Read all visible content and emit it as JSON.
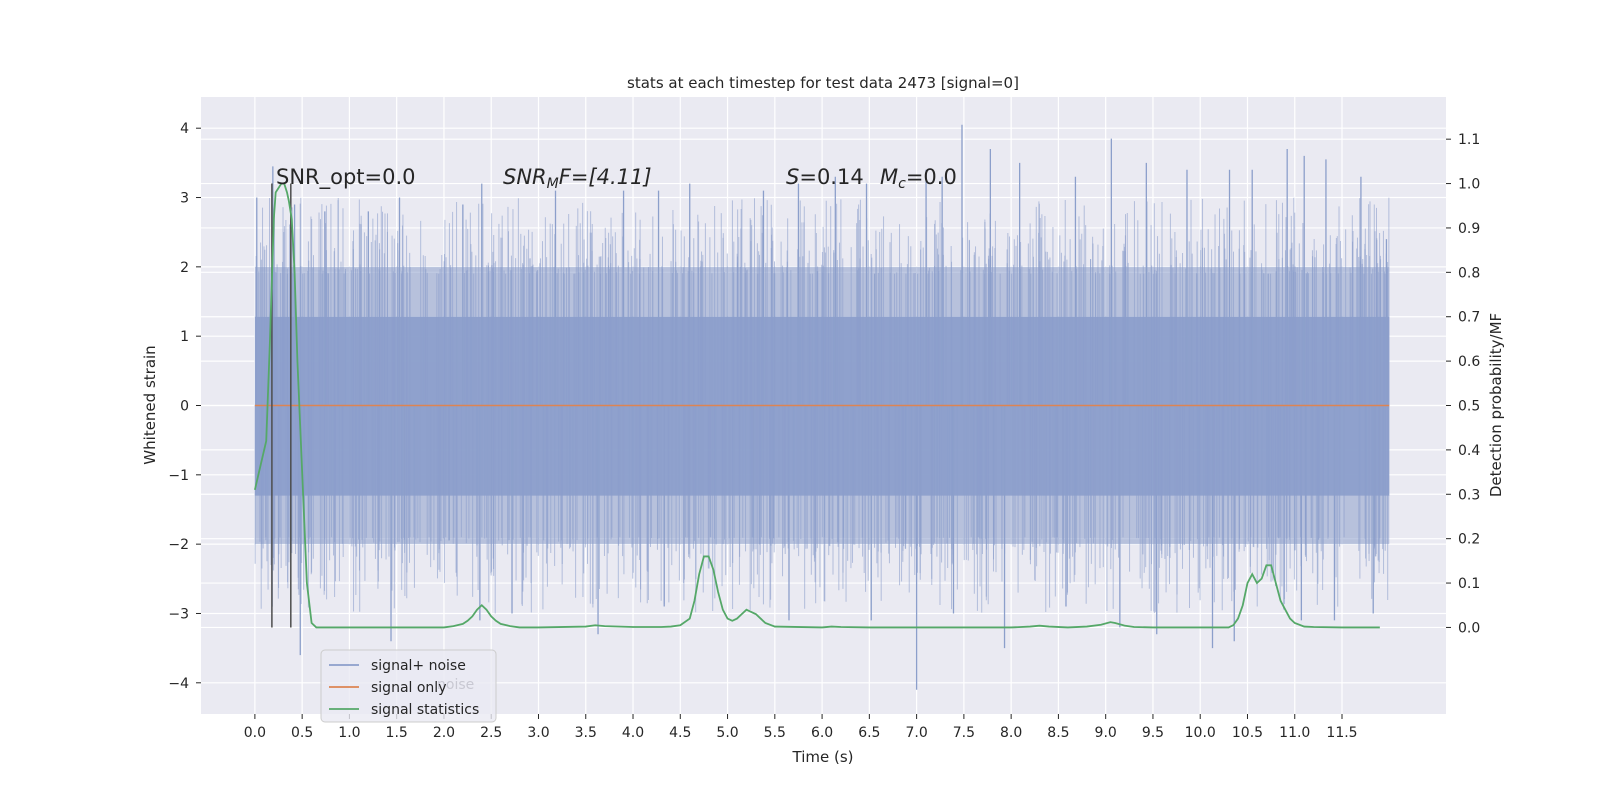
{
  "chart_data": {
    "type": "line",
    "title": "stats at each timestep for test data 2473 [signal=0]",
    "xlabel": "Time (s)",
    "ylabel": "Whitened strain",
    "y2label": "Detection probability/MF",
    "xlim": [
      -0.57,
      12.6
    ],
    "ylim": [
      -4.45,
      4.45
    ],
    "y2lim": [
      -0.195,
      1.195
    ],
    "x_ticks": [
      0.0,
      0.5,
      1.0,
      1.5,
      2.0,
      2.5,
      3.0,
      3.5,
      4.0,
      4.5,
      5.0,
      5.5,
      6.0,
      6.5,
      7.0,
      7.5,
      8.0,
      8.5,
      9.0,
      9.5,
      10.0,
      10.5,
      11.0,
      11.5
    ],
    "x_tick_labels": [
      "0.0",
      "0.5",
      "1.0",
      "1.5",
      "2.0",
      "2.5",
      "3.0",
      "3.5",
      "4.0",
      "4.5",
      "5.0",
      "5.5",
      "6.0",
      "6.5",
      "7.0",
      "7.5",
      "8.0",
      "8.5",
      "9.0",
      "9.5",
      "10.0",
      "10.5",
      "11.0",
      "11.5"
    ],
    "y_ticks": [
      -4,
      -3,
      -2,
      -1,
      0,
      1,
      2,
      3,
      4
    ],
    "y_tick_labels": [
      "−4",
      "−3",
      "−2",
      "−1",
      "0",
      "1",
      "2",
      "3",
      "4"
    ],
    "y2_ticks": [
      0.0,
      0.1,
      0.2,
      0.3,
      0.4,
      0.5,
      0.6,
      0.7,
      0.8,
      0.9,
      1.0,
      1.1
    ],
    "y2_tick_labels": [
      "0.0",
      "0.1",
      "0.2",
      "0.3",
      "0.4",
      "0.5",
      "0.6",
      "0.7",
      "0.8",
      "0.9",
      "1.0",
      "1.1"
    ],
    "grid": true,
    "legend_position": "lower-left",
    "noise_band": {
      "x_start": 0.0,
      "x_end": 12.0,
      "core_low": -1.3,
      "core_high": 1.28,
      "typical_low": -2.0,
      "typical_high": 2.0
    },
    "series": [
      {
        "name": "signal+ noise",
        "color": "#8c9fcb",
        "spikes_up": [
          [
            0.02,
            3.0
          ],
          [
            0.19,
            3.45
          ],
          [
            0.42,
            2.9
          ],
          [
            0.74,
            2.8
          ],
          [
            1.2,
            2.8
          ],
          [
            1.53,
            3.0
          ],
          [
            2.2,
            2.9
          ],
          [
            2.4,
            3.2
          ],
          [
            3.18,
            3.1
          ],
          [
            3.9,
            3.1
          ],
          [
            4.27,
            3.1
          ],
          [
            4.6,
            3.2
          ],
          [
            5.38,
            3.1
          ],
          [
            5.75,
            3.2
          ],
          [
            6.14,
            3.3
          ],
          [
            6.47,
            3.2
          ],
          [
            7.1,
            3.4
          ],
          [
            7.27,
            3.3
          ],
          [
            7.48,
            4.05
          ],
          [
            7.78,
            3.7
          ],
          [
            8.09,
            3.5
          ],
          [
            8.68,
            3.3
          ],
          [
            9.06,
            3.85
          ],
          [
            9.43,
            3.5
          ],
          [
            9.86,
            3.4
          ],
          [
            10.31,
            3.4
          ],
          [
            10.55,
            3.4
          ],
          [
            10.92,
            3.7
          ],
          [
            11.1,
            3.6
          ],
          [
            11.33,
            3.55
          ],
          [
            11.7,
            3.3
          ],
          [
            11.97,
            2.4
          ]
        ],
        "spikes_down": [
          [
            0.48,
            -3.6
          ],
          [
            1.44,
            -3.4
          ],
          [
            2.38,
            -3.1
          ],
          [
            2.72,
            -3.0
          ],
          [
            3.63,
            -3.3
          ],
          [
            4.33,
            -2.9
          ],
          [
            5.65,
            -3.1
          ],
          [
            6.52,
            -3.1
          ],
          [
            7.0,
            -4.1
          ],
          [
            7.39,
            -3.0
          ],
          [
            7.93,
            -3.5
          ],
          [
            8.58,
            -2.9
          ],
          [
            9.15,
            -3.2
          ],
          [
            9.54,
            -3.3
          ],
          [
            10.13,
            -3.5
          ],
          [
            10.36,
            -3.4
          ],
          [
            11.07,
            -3.1
          ],
          [
            11.42,
            -3.1
          ],
          [
            11.83,
            -3.0
          ]
        ]
      },
      {
        "name": "signal only",
        "color": "#dd8452",
        "x": [
          0.0,
          12.0
        ],
        "y": [
          0.0,
          0.0
        ]
      },
      {
        "name": "signal statistics",
        "color": "#55a868",
        "x": [
          0.0,
          0.12,
          0.16,
          0.2,
          0.22,
          0.25,
          0.28,
          0.31,
          0.34,
          0.36,
          0.39,
          0.42,
          0.45,
          0.5,
          0.55,
          0.6,
          0.65,
          0.8,
          1.0,
          1.5,
          2.0,
          2.1,
          2.2,
          2.25,
          2.3,
          2.35,
          2.4,
          2.45,
          2.5,
          2.55,
          2.6,
          2.7,
          2.8,
          3.0,
          3.5,
          3.6,
          3.7,
          4.0,
          4.3,
          4.4,
          4.5,
          4.6,
          4.65,
          4.7,
          4.75,
          4.8,
          4.85,
          4.9,
          4.95,
          5.0,
          5.05,
          5.1,
          5.15,
          5.2,
          5.25,
          5.3,
          5.35,
          5.4,
          5.5,
          6.0,
          6.1,
          6.2,
          6.5,
          7.0,
          7.5,
          8.0,
          8.2,
          8.3,
          8.4,
          8.6,
          8.8,
          8.95,
          9.05,
          9.1,
          9.2,
          9.3,
          9.5,
          10.0,
          10.3,
          10.35,
          10.4,
          10.45,
          10.5,
          10.55,
          10.6,
          10.65,
          10.7,
          10.75,
          10.8,
          10.85,
          10.9,
          10.95,
          11.0,
          11.1,
          11.2,
          11.5,
          11.9
        ],
        "y": [
          0.31,
          0.42,
          0.65,
          0.92,
          0.98,
          0.99,
          1.0,
          1.0,
          0.98,
          0.96,
          0.92,
          0.8,
          0.6,
          0.35,
          0.1,
          0.01,
          0.0,
          0.0,
          0.0,
          0.0,
          0.0,
          0.003,
          0.008,
          0.015,
          0.025,
          0.04,
          0.05,
          0.04,
          0.025,
          0.015,
          0.008,
          0.003,
          0.0,
          0.0,
          0.002,
          0.005,
          0.003,
          0.001,
          0.001,
          0.002,
          0.005,
          0.02,
          0.06,
          0.12,
          0.16,
          0.16,
          0.13,
          0.08,
          0.04,
          0.02,
          0.015,
          0.02,
          0.03,
          0.04,
          0.035,
          0.03,
          0.02,
          0.01,
          0.002,
          0.0,
          0.002,
          0.001,
          0.0,
          0.0,
          0.0,
          0.0,
          0.002,
          0.004,
          0.002,
          0.0,
          0.002,
          0.006,
          0.012,
          0.01,
          0.004,
          0.001,
          0.0,
          0.0,
          0.0,
          0.005,
          0.02,
          0.05,
          0.1,
          0.12,
          0.1,
          0.11,
          0.14,
          0.14,
          0.1,
          0.06,
          0.04,
          0.02,
          0.01,
          0.002,
          0.001,
          0.0,
          0.0
        ]
      }
    ],
    "vertical_lines": [
      0.18,
      0.38
    ],
    "annotations": {
      "snr_opt": "SNR_opt=0.0",
      "snr_mf_main": "SNR",
      "snr_mf_sub": "M",
      "snr_mf_tail": "F=[4.11]",
      "s_main": "S",
      "s_value": "=0.14",
      "mc_main": "M",
      "mc_sub": "c",
      "mc_value": "=0.0"
    },
    "legend": {
      "items": [
        {
          "label": "signal+ noise",
          "color": "#8c9fcb"
        },
        {
          "label": "signal only",
          "color": "#dd8452"
        },
        {
          "label": "signal statistics",
          "color": "#55a868"
        }
      ],
      "ghost_text": "noise"
    }
  },
  "colors": {
    "plot_background": "#eaeaf2",
    "grid": "#ffffff",
    "text": "#262626",
    "vline": "#4d4d4d"
  }
}
